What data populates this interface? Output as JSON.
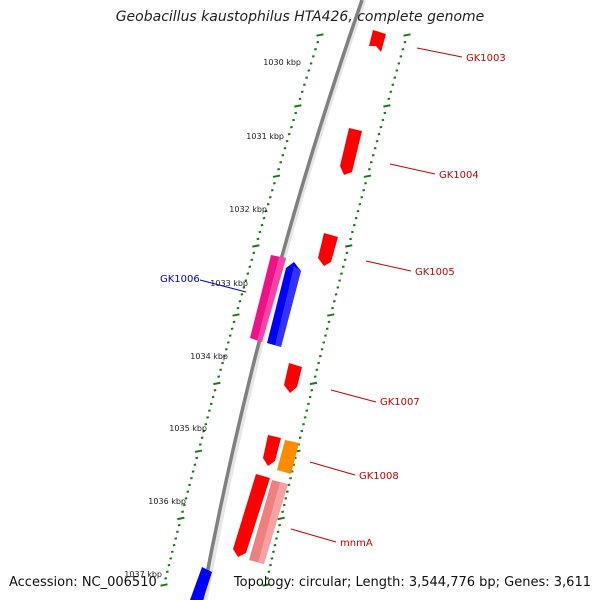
{
  "title": "Geobacillus kaustophilus HTA426, complete genome",
  "footer": {
    "accession": "Accession: NC_006510",
    "summary": "Topology: circular; Length: 3,544,776 bp; Genes: 3,611"
  },
  "colors": {
    "backbone": "#808080",
    "tick": "#1a7a1a",
    "forward_gene": "#ff0000",
    "reverse_gene": "#0000ff",
    "label_red": "#cc0000",
    "label_blue": "#0000cc",
    "magenta": "#ee1188",
    "orange": "#ff8c00",
    "pink": "#f08080"
  },
  "kbp_labels": [
    "1030 kbp",
    "1031 kbp",
    "1032 kbp",
    "1033 kbp",
    "1034 kbp",
    "1035 kbp",
    "1036 kbp",
    "1037 kbp"
  ],
  "gene_labels": [
    {
      "text": "GK1003",
      "color": "red"
    },
    {
      "text": "GK1004",
      "color": "red"
    },
    {
      "text": "GK1005",
      "color": "red"
    },
    {
      "text": "GK1006",
      "color": "blue"
    },
    {
      "text": "GK1007",
      "color": "red"
    },
    {
      "text": "GK1008",
      "color": "red"
    },
    {
      "text": "mnmA",
      "color": "red"
    }
  ]
}
